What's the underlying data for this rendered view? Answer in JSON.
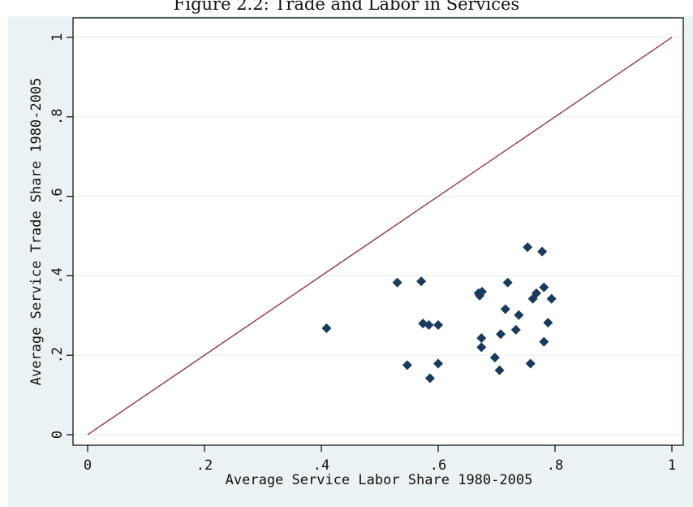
{
  "chart_data": {
    "type": "scatter",
    "title": "Figure 2.2:  Trade and Labor in Services",
    "xlabel": "Average Service Labor Share 1980-2005",
    "ylabel": "Average Service Trade Share 1980-2005",
    "xlim": [
      0,
      1
    ],
    "ylim": [
      0,
      1
    ],
    "xticks": [
      "0",
      ".2",
      ".4",
      ".6",
      ".8",
      "1"
    ],
    "yticks": [
      "0",
      ".2",
      ".4",
      ".6",
      ".8",
      "1"
    ],
    "xtick_values": [
      0,
      0.2,
      0.4,
      0.6,
      0.8,
      1
    ],
    "ytick_values": [
      0,
      0.2,
      0.4,
      0.6,
      0.8,
      1
    ],
    "grid": "horizontal",
    "reference_line": {
      "x": [
        0,
        1
      ],
      "y": [
        0,
        1
      ],
      "color": "#8b2b3a"
    },
    "marker_color": "#1a3a5c",
    "points": [
      {
        "x": 0.409,
        "y": 0.268
      },
      {
        "x": 0.53,
        "y": 0.383
      },
      {
        "x": 0.547,
        "y": 0.175
      },
      {
        "x": 0.571,
        "y": 0.386
      },
      {
        "x": 0.574,
        "y": 0.28
      },
      {
        "x": 0.584,
        "y": 0.276
      },
      {
        "x": 0.586,
        "y": 0.142
      },
      {
        "x": 0.6,
        "y": 0.276
      },
      {
        "x": 0.6,
        "y": 0.179
      },
      {
        "x": 0.669,
        "y": 0.356
      },
      {
        "x": 0.671,
        "y": 0.35
      },
      {
        "x": 0.675,
        "y": 0.36
      },
      {
        "x": 0.674,
        "y": 0.243
      },
      {
        "x": 0.674,
        "y": 0.22
      },
      {
        "x": 0.697,
        "y": 0.194
      },
      {
        "x": 0.705,
        "y": 0.162
      },
      {
        "x": 0.707,
        "y": 0.253
      },
      {
        "x": 0.715,
        "y": 0.316
      },
      {
        "x": 0.719,
        "y": 0.383
      },
      {
        "x": 0.733,
        "y": 0.264
      },
      {
        "x": 0.738,
        "y": 0.301
      },
      {
        "x": 0.753,
        "y": 0.472
      },
      {
        "x": 0.758,
        "y": 0.179
      },
      {
        "x": 0.762,
        "y": 0.342
      },
      {
        "x": 0.768,
        "y": 0.356
      },
      {
        "x": 0.778,
        "y": 0.461
      },
      {
        "x": 0.781,
        "y": 0.234
      },
      {
        "x": 0.781,
        "y": 0.371
      },
      {
        "x": 0.788,
        "y": 0.282
      },
      {
        "x": 0.794,
        "y": 0.342
      }
    ]
  }
}
